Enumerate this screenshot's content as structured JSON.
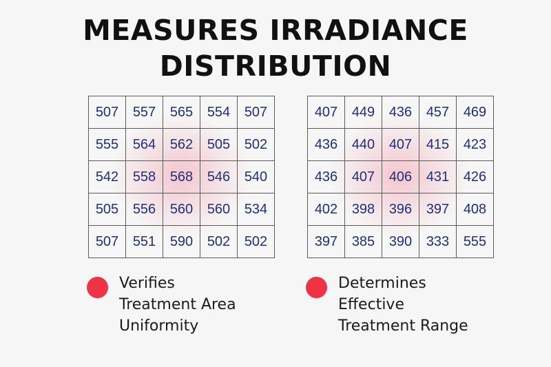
{
  "title": {
    "line1": "MEASURES IRRADIANCE",
    "line2": "DISTRIBUTION"
  },
  "left_grid": [
    [
      "507",
      "557",
      "565",
      "554",
      "507"
    ],
    [
      "555",
      "564",
      "562",
      "505",
      "502"
    ],
    [
      "542",
      "558",
      "568",
      "546",
      "540"
    ],
    [
      "505",
      "556",
      "560",
      "560",
      "534"
    ],
    [
      "507",
      "551",
      "590",
      "502",
      "502"
    ]
  ],
  "right_grid": [
    [
      "407",
      "449",
      "436",
      "457",
      "469"
    ],
    [
      "436",
      "440",
      "407",
      "415",
      "423"
    ],
    [
      "436",
      "407",
      "406",
      "431",
      "426"
    ],
    [
      "402",
      "398",
      "396",
      "397",
      "408"
    ],
    [
      "397",
      "385",
      "390",
      "333",
      "555"
    ]
  ],
  "captions": {
    "left": [
      "Verifies",
      "Treatment Area",
      "Uniformity"
    ],
    "right": [
      "Determines",
      "Effective",
      "Treatment Range"
    ]
  },
  "colors": {
    "bullet": "#ef3344",
    "numbers": "#1f2f7a",
    "glow": "#ee788c"
  }
}
